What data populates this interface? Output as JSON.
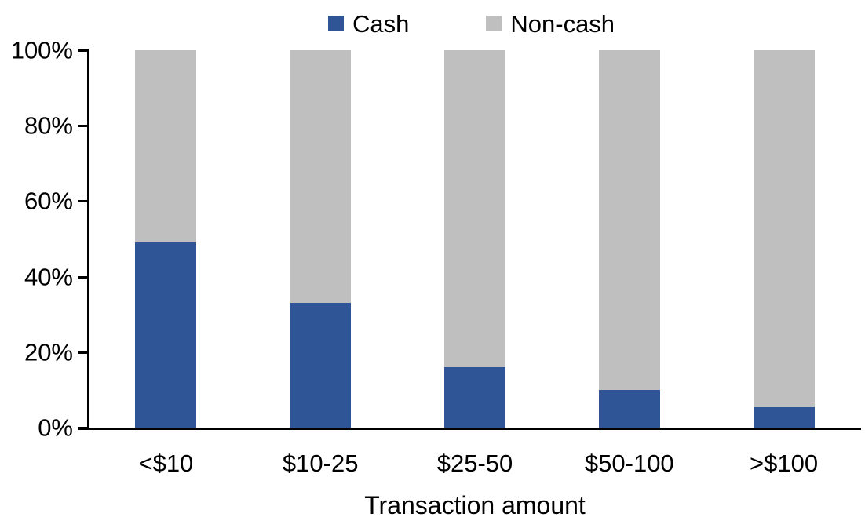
{
  "chart_data": {
    "type": "bar",
    "stacked": true,
    "stack_total": 100,
    "title": "",
    "xlabel": "Transaction amount",
    "ylabel": "",
    "categories": [
      "<$10",
      "$10-25",
      "$25-50",
      "$50-100",
      ">$100"
    ],
    "series": [
      {
        "name": "Cash",
        "color": "#2F5597",
        "values": [
          49,
          33,
          16,
          10,
          5.5
        ]
      },
      {
        "name": "Non-cash",
        "color": "#BFBFBF",
        "values": [
          51,
          67,
          84,
          90,
          94.5
        ]
      }
    ],
    "ylim": [
      0,
      100
    ],
    "yticks": [
      {
        "label": "0%",
        "value": 0
      },
      {
        "label": "20%",
        "value": 20
      },
      {
        "label": "40%",
        "value": 40
      },
      {
        "label": "60%",
        "value": 60
      },
      {
        "label": "80%",
        "value": 80
      },
      {
        "label": "100%",
        "value": 100
      }
    ],
    "grid": false,
    "legend_position": "top-center",
    "axis_color": "#000000",
    "text_color": "#000000",
    "background": "#FFFFFF"
  }
}
